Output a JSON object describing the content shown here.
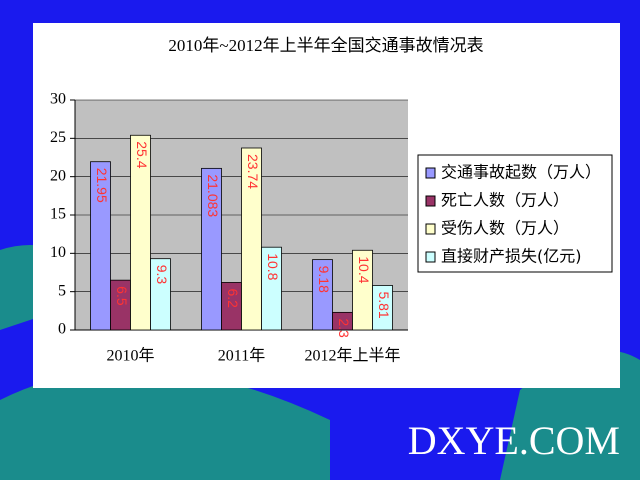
{
  "chart_data": {
    "type": "bar",
    "title": "2010年~2012年上半年全国交通事故情况表",
    "categories": [
      "2010年",
      "2011年",
      "2012年上半年"
    ],
    "series": [
      {
        "name": "交通事故起数（万人）",
        "color": "#9999ff",
        "values": [
          21.95,
          21.083,
          9.18
        ]
      },
      {
        "name": "死亡人数（万人）",
        "color": "#993366",
        "values": [
          6.5,
          6.2,
          2.3
        ]
      },
      {
        "name": "受伤人数（万人）",
        "color": "#ffffcc",
        "values": [
          25.4,
          23.74,
          10.4
        ]
      },
      {
        "name": "直接财产损失(亿元)",
        "color": "#ccffff",
        "values": [
          9.3,
          10.8,
          5.81
        ]
      }
    ],
    "ylim": [
      0,
      30
    ],
    "yticks": [
      0,
      5,
      10,
      15,
      20,
      25,
      30
    ],
    "grid": true,
    "legend": "right"
  },
  "watermark": "DXYE.COM"
}
